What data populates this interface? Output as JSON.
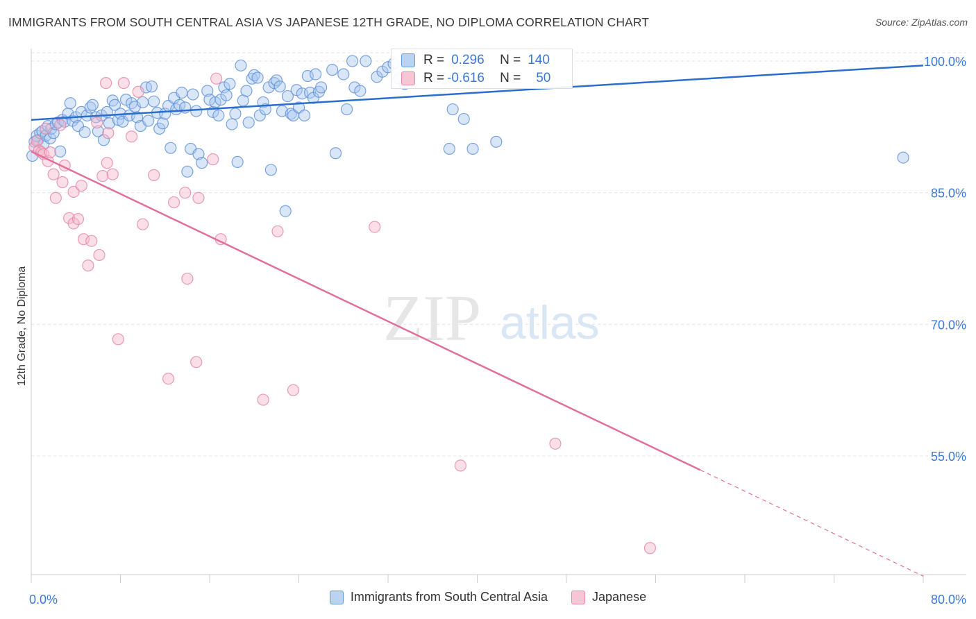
{
  "title": "IMMIGRANTS FROM SOUTH CENTRAL ASIA VS JAPANESE 12TH GRADE, NO DIPLOMA CORRELATION CHART",
  "source": "Source: ZipAtlas.com",
  "watermark": {
    "zip": "ZIP",
    "atlas": "atlas"
  },
  "colors": {
    "blue_fill": "#a9c8ef",
    "blue_stroke": "#5b8fd6",
    "blue_line": "#2a6dcb",
    "pink_fill": "#f5b8cb",
    "pink_stroke": "#e583a5",
    "pink_line": "#e0709a",
    "tick_text": "#3c78d8",
    "grid": "#e3e3e3"
  },
  "stats": {
    "r_label": "R =",
    "n_label": "N =",
    "series1": {
      "r": "0.296",
      "n": "140"
    },
    "series2": {
      "r": "-0.616",
      "n": "50"
    }
  },
  "chart_data": {
    "type": "scatter",
    "title": "IMMIGRANTS FROM SOUTH CENTRAL ASIA VS JAPANESE 12TH GRADE, NO DIPLOMA CORRELATION CHART",
    "xlabel": "",
    "ylabel": "12th Grade, No Diploma",
    "xlim": [
      0,
      80
    ],
    "ylim": [
      40,
      102
    ],
    "x_tick_labels": [
      "0.0%",
      "80.0%"
    ],
    "y_ticks": [
      100,
      85,
      70,
      55
    ],
    "y_tick_labels": [
      "100.0%",
      "85.0%",
      "70.0%",
      "55.0%"
    ],
    "grid": true,
    "legend_position": "bottom-center",
    "series": [
      {
        "name": "Immigrants from South Central Asia",
        "color": "#a9c8ef",
        "trend": {
          "x": [
            0,
            80
          ],
          "y": [
            93.3,
            99.5
          ]
        },
        "points": [
          [
            0.1,
            89.2
          ],
          [
            0.3,
            90.8
          ],
          [
            0.5,
            91.5
          ],
          [
            0.6,
            91.0
          ],
          [
            0.8,
            91.8
          ],
          [
            1.0,
            92.0
          ],
          [
            1.1,
            90.5
          ],
          [
            1.3,
            91.5
          ],
          [
            1.5,
            92.6
          ],
          [
            1.7,
            91.2
          ],
          [
            1.8,
            92.3
          ],
          [
            2.0,
            91.8
          ],
          [
            2.2,
            92.8
          ],
          [
            2.4,
            93.0
          ],
          [
            2.6,
            89.7
          ],
          [
            2.8,
            93.3
          ],
          [
            3.0,
            93.1
          ],
          [
            3.3,
            94.0
          ],
          [
            3.5,
            95.2
          ],
          [
            3.7,
            93.2
          ],
          [
            4.0,
            93.6
          ],
          [
            4.2,
            92.6
          ],
          [
            4.5,
            94.2
          ],
          [
            4.8,
            91.9
          ],
          [
            5.0,
            93.8
          ],
          [
            5.3,
            94.7
          ],
          [
            5.5,
            95.0
          ],
          [
            5.8,
            93.6
          ],
          [
            6.0,
            92.0
          ],
          [
            6.3,
            93.8
          ],
          [
            6.5,
            91.0
          ],
          [
            6.8,
            94.2
          ],
          [
            7.0,
            92.9
          ],
          [
            7.3,
            95.5
          ],
          [
            7.5,
            95.0
          ],
          [
            7.8,
            93.3
          ],
          [
            8.0,
            94.0
          ],
          [
            8.2,
            93.1
          ],
          [
            8.5,
            95.6
          ],
          [
            8.8,
            93.8
          ],
          [
            9.0,
            95.2
          ],
          [
            9.3,
            94.8
          ],
          [
            9.5,
            93.6
          ],
          [
            9.8,
            92.6
          ],
          [
            10.0,
            95.3
          ],
          [
            10.3,
            97.0
          ],
          [
            10.5,
            93.2
          ],
          [
            10.8,
            97.1
          ],
          [
            11.0,
            95.4
          ],
          [
            11.3,
            94.1
          ],
          [
            11.5,
            92.3
          ],
          [
            11.8,
            92.9
          ],
          [
            12.0,
            94.0
          ],
          [
            12.3,
            94.9
          ],
          [
            12.5,
            90.1
          ],
          [
            12.8,
            95.8
          ],
          [
            13.0,
            94.5
          ],
          [
            13.3,
            95.0
          ],
          [
            13.5,
            96.4
          ],
          [
            13.8,
            94.7
          ],
          [
            14.0,
            87.4
          ],
          [
            14.3,
            90.0
          ],
          [
            14.5,
            96.2
          ],
          [
            14.8,
            94.3
          ],
          [
            15.0,
            89.4
          ],
          [
            15.3,
            88.4
          ],
          [
            15.8,
            96.6
          ],
          [
            16.0,
            95.6
          ],
          [
            16.3,
            94.2
          ],
          [
            16.5,
            95.3
          ],
          [
            16.8,
            93.8
          ],
          [
            17.0,
            95.6
          ],
          [
            17.3,
            97.0
          ],
          [
            17.5,
            96.1
          ],
          [
            17.8,
            97.4
          ],
          [
            18.0,
            92.8
          ],
          [
            18.3,
            94.0
          ],
          [
            18.5,
            88.5
          ],
          [
            18.8,
            99.5
          ],
          [
            19.0,
            95.5
          ],
          [
            19.3,
            96.6
          ],
          [
            19.5,
            93.0
          ],
          [
            19.8,
            98.0
          ],
          [
            20.0,
            98.4
          ],
          [
            20.3,
            98.1
          ],
          [
            20.5,
            93.8
          ],
          [
            20.8,
            95.3
          ],
          [
            21.0,
            94.5
          ],
          [
            21.3,
            97.0
          ],
          [
            21.5,
            87.6
          ],
          [
            21.8,
            97.5
          ],
          [
            22.0,
            97.8
          ],
          [
            22.3,
            97.1
          ],
          [
            22.5,
            94.3
          ],
          [
            22.8,
            82.9
          ],
          [
            23.0,
            96.0
          ],
          [
            23.3,
            94.0
          ],
          [
            23.5,
            93.8
          ],
          [
            23.8,
            96.7
          ],
          [
            24.0,
            94.7
          ],
          [
            24.3,
            96.3
          ],
          [
            24.5,
            93.8
          ],
          [
            24.8,
            98.3
          ],
          [
            25.0,
            96.4
          ],
          [
            25.3,
            95.8
          ],
          [
            25.5,
            98.5
          ],
          [
            25.8,
            96.5
          ],
          [
            26.0,
            97.0
          ],
          [
            27.0,
            99.0
          ],
          [
            27.3,
            89.5
          ],
          [
            28.0,
            98.5
          ],
          [
            28.3,
            94.5
          ],
          [
            28.8,
            100.0
          ],
          [
            29.0,
            97.0
          ],
          [
            29.5,
            96.6
          ],
          [
            30.0,
            100.0
          ],
          [
            31.0,
            98.2
          ],
          [
            31.5,
            98.8
          ],
          [
            32.0,
            99.3
          ],
          [
            32.5,
            99.7
          ],
          [
            33.0,
            98.0
          ],
          [
            33.5,
            97.4
          ],
          [
            34.0,
            98.0
          ],
          [
            37.0,
            98.0
          ],
          [
            37.5,
            90.0
          ],
          [
            37.8,
            94.5
          ],
          [
            38.8,
            93.4
          ],
          [
            39.6,
            90.0
          ],
          [
            41.7,
            90.8
          ],
          [
            78.2,
            89.0
          ]
        ]
      },
      {
        "name": "Japanese",
        "color": "#f5b8cb",
        "trend": {
          "x": [
            0,
            60
          ],
          "y": [
            89.7,
            53.4
          ]
        },
        "trend_dashed": {
          "x": [
            60,
            80
          ],
          "y": [
            53.4,
            41.3
          ]
        },
        "points": [
          [
            0.3,
            90.2
          ],
          [
            0.5,
            90.9
          ],
          [
            0.7,
            89.8
          ],
          [
            0.9,
            89.6
          ],
          [
            1.1,
            89.4
          ],
          [
            1.3,
            92.3
          ],
          [
            1.5,
            88.6
          ],
          [
            1.7,
            89.6
          ],
          [
            2.0,
            87.1
          ],
          [
            2.2,
            84.4
          ],
          [
            2.6,
            92.7
          ],
          [
            2.8,
            86.2
          ],
          [
            3.0,
            88.1
          ],
          [
            3.4,
            82.1
          ],
          [
            3.8,
            85.1
          ],
          [
            3.8,
            81.5
          ],
          [
            4.2,
            82.0
          ],
          [
            4.5,
            85.8
          ],
          [
            4.7,
            79.7
          ],
          [
            5.1,
            76.7
          ],
          [
            5.4,
            79.5
          ],
          [
            5.9,
            93.0
          ],
          [
            6.1,
            77.9
          ],
          [
            6.4,
            86.9
          ],
          [
            6.7,
            97.5
          ],
          [
            6.8,
            88.4
          ],
          [
            6.9,
            91.8
          ],
          [
            7.3,
            87.1
          ],
          [
            7.8,
            68.3
          ],
          [
            8.3,
            97.5
          ],
          [
            9.0,
            91.4
          ],
          [
            9.6,
            96.5
          ],
          [
            10.0,
            81.4
          ],
          [
            11.0,
            87.0
          ],
          [
            12.3,
            63.8
          ],
          [
            12.8,
            83.9
          ],
          [
            13.8,
            85.0
          ],
          [
            14.0,
            75.2
          ],
          [
            14.8,
            65.7
          ],
          [
            15.0,
            84.4
          ],
          [
            16.3,
            88.8
          ],
          [
            16.6,
            98.0
          ],
          [
            17.0,
            79.7
          ],
          [
            20.8,
            61.4
          ],
          [
            22.1,
            80.6
          ],
          [
            23.5,
            62.5
          ],
          [
            30.8,
            81.1
          ],
          [
            38.0,
            99.8
          ],
          [
            38.5,
            53.9
          ],
          [
            47.0,
            56.4
          ],
          [
            55.5,
            44.5
          ]
        ]
      }
    ]
  }
}
